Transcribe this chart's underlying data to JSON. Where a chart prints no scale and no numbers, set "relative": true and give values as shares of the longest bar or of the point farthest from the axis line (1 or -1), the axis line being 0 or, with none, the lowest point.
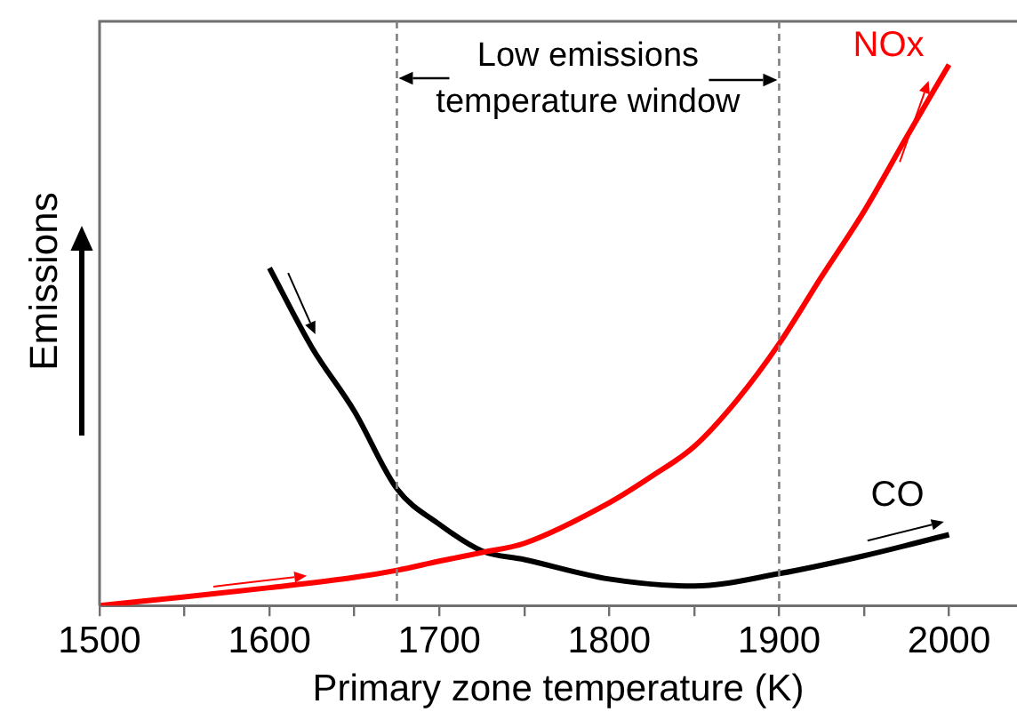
{
  "chart_data": {
    "type": "line",
    "xlabel": "Primary zone temperature (K)",
    "ylabel": "Emissions",
    "relative": true,
    "xlim": [
      1500,
      2040
    ],
    "xticks": [
      1500,
      {
        "value": 1550,
        "label": null
      },
      1600,
      {
        "value": 1650,
        "label": null
      },
      1700,
      {
        "value": 1750,
        "label": null
      },
      1800,
      {
        "value": 1850,
        "label": null
      },
      1900,
      {
        "value": 1950,
        "label": null
      },
      2000
    ],
    "series": [
      {
        "name": "NOx",
        "color": "#ff0000",
        "x": [
          1500,
          1550,
          1600,
          1650,
          1675,
          1700,
          1725,
          1750,
          1800,
          1825,
          1850,
          1875,
          1900,
          1925,
          1950,
          1975,
          2000
        ],
        "values": [
          0,
          0.016,
          0.033,
          0.052,
          0.065,
          0.082,
          0.098,
          0.115,
          0.19,
          0.239,
          0.294,
          0.379,
          0.484,
          0.608,
          0.729,
          0.866,
          1
        ]
      },
      {
        "name": "CO",
        "color": "#000000",
        "x": [
          1600,
          1625,
          1650,
          1675,
          1700,
          1725,
          1750,
          1800,
          1850,
          1900,
          1950,
          2000
        ],
        "values": [
          0.624,
          0.477,
          0.359,
          0.216,
          0.15,
          0.101,
          0.085,
          0.049,
          0.036,
          0.059,
          0.092,
          0.131
        ]
      }
    ],
    "ref_lines": [
      {
        "axis": "x",
        "value": 1675,
        "color": "#808080",
        "line_style": "dashed"
      },
      {
        "axis": "x",
        "value": 1900,
        "color": "#808080",
        "line_style": "dashed"
      }
    ],
    "annotations": [
      "Low emissions\ntemperature window"
    ],
    "legend": false,
    "grid": false,
    "marker": "none",
    "line_style": "solid"
  }
}
